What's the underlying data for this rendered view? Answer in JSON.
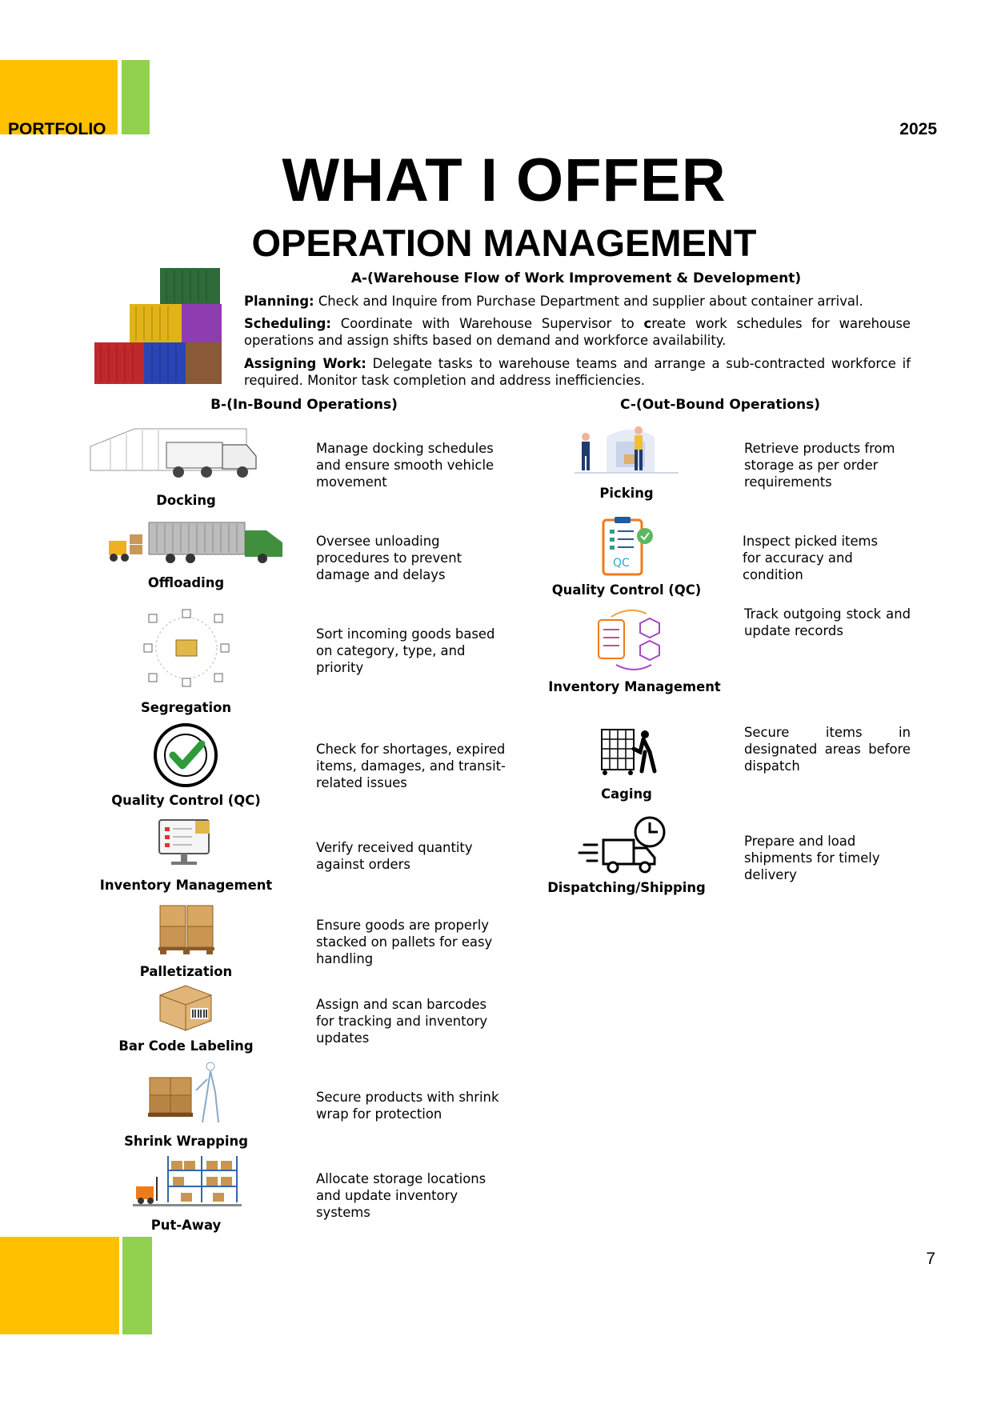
{
  "header": {
    "portfolio_label": "PORTFOLIO",
    "year": "2025"
  },
  "title": "WHAT I OFFER",
  "subtitle": "OPERATION MANAGEMENT",
  "section_a": {
    "heading": "A-(Warehouse Flow of Work Improvement & Development)",
    "planning_label": "Planning:",
    "planning_text": " Check and Inquire from Purchase Department and supplier about container arrival.",
    "scheduling_label": "Scheduling:",
    "scheduling_text_1": " Coordinate with Warehouse Supervisor to ",
    "scheduling_bold_c": "c",
    "scheduling_text_2": "reate work schedules for warehouse operations and assign shifts based on demand and workforce availability.",
    "assigning_label": "Assigning Work:",
    "assigning_text": " Delegate tasks to warehouse teams and arrange a sub-contracted workforce if required. Monitor task completion and address inefficiencies."
  },
  "inbound": {
    "heading": "B-(In-Bound Operations)",
    "items": [
      {
        "label": "Docking",
        "desc": "Manage docking schedules and ensure smooth vehicle movement",
        "icon": "truck-dock-icon"
      },
      {
        "label": "Offloading",
        "desc": "Oversee unloading procedures to prevent damage and delays",
        "icon": "forklift-truck-icon"
      },
      {
        "label": "Segregation",
        "desc": "Sort incoming goods based on category, type, and priority",
        "icon": "sorting-icon"
      },
      {
        "label": "Quality Control (QC)",
        "desc": "Check for shortages, expired items, damages, and transit-related issues",
        "icon": "qc-approved-icon"
      },
      {
        "label": "Inventory Management",
        "desc": "Verify received quantity against orders",
        "icon": "monitor-inventory-icon"
      },
      {
        "label": "Palletization",
        "desc": "Ensure goods are properly stacked on pallets for easy handling",
        "icon": "pallet-boxes-icon"
      },
      {
        "label": "Bar Code Labeling",
        "desc": "Assign and scan barcodes for tracking and inventory updates",
        "icon": "barcode-box-icon"
      },
      {
        "label": "Shrink Wrapping",
        "desc": "Secure products with shrink wrap for protection",
        "icon": "shrink-wrap-icon"
      },
      {
        "label": "Put-Away",
        "desc": "Allocate storage locations and update inventory systems",
        "icon": "racking-forklift-icon"
      }
    ]
  },
  "outbound": {
    "heading": "C-(Out-Bound Operations)",
    "items": [
      {
        "label": "Picking",
        "desc": "Retrieve products from storage as per order requirements",
        "icon": "picking-workers-icon"
      },
      {
        "label": "Quality Control (QC)",
        "desc": "Inspect picked items for accuracy and condition",
        "icon": "qc-clipboard-icon"
      },
      {
        "label": "Inventory Management",
        "desc": "Track outgoing stock and update records",
        "icon": "inventory-cycle-icon"
      },
      {
        "label": "Caging",
        "desc": "Secure items in designated areas before dispatch",
        "icon": "cage-person-icon"
      },
      {
        "label": "Dispatching/Shipping",
        "desc": "Prepare and load shipments for timely delivery",
        "icon": "fast-truck-clock-icon"
      }
    ]
  },
  "page_number": "7",
  "colors": {
    "accent_yellow": "#FFC000",
    "accent_green": "#92D050"
  }
}
